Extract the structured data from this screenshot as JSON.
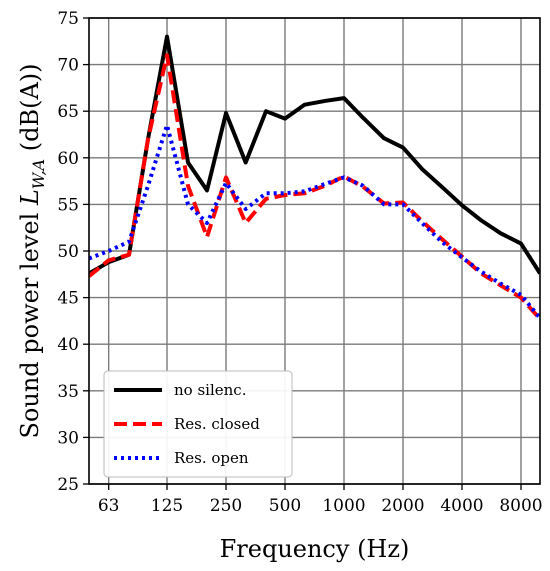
{
  "chart_data": {
    "type": "line",
    "xlabel": "Frequency (Hz)",
    "ylabel": "Sound power level L_{W,A} (dB(A))",
    "ylabel_parts": {
      "prefix": "Sound power level ",
      "symbol": "L",
      "subscript": "W,A",
      "suffix": " (dB(A))"
    },
    "x_scale": "log",
    "xlim": [
      50,
      10000
    ],
    "ylim": [
      25,
      75
    ],
    "grid": true,
    "legend_position": "lower-left",
    "x": [
      50,
      63,
      80,
      100,
      125,
      160,
      200,
      250,
      315,
      400,
      500,
      630,
      800,
      1000,
      1250,
      1600,
      2000,
      2500,
      3150,
      4000,
      5000,
      6300,
      8000,
      10000
    ],
    "x_ticks": [
      63,
      125,
      250,
      500,
      1000,
      2000,
      4000,
      8000
    ],
    "x_tick_labels": [
      "63",
      "125",
      "250",
      "500",
      "1000",
      "2000",
      "4000",
      "8000"
    ],
    "y_ticks": [
      25,
      30,
      35,
      40,
      45,
      50,
      55,
      60,
      65,
      70,
      75
    ],
    "y_tick_labels": [
      "25",
      "30",
      "35",
      "40",
      "45",
      "50",
      "55",
      "60",
      "65",
      "70",
      "75"
    ],
    "series": [
      {
        "name": "no silenc.",
        "color": "#000000",
        "style": "solid",
        "values": [
          47.6,
          48.8,
          49.6,
          62.0,
          73.0,
          59.5,
          56.5,
          64.8,
          59.5,
          65.0,
          64.2,
          65.7,
          66.1,
          66.4,
          64.3,
          62.1,
          61.1,
          58.8,
          56.9,
          54.9,
          53.3,
          51.9,
          50.8,
          47.6
        ]
      },
      {
        "name": "Res. closed",
        "color": "#ff0000",
        "style": "dashed",
        "values": [
          47.3,
          49.0,
          49.6,
          62.0,
          71.0,
          57.0,
          51.5,
          57.9,
          53.0,
          55.6,
          56.0,
          56.2,
          57.0,
          58.0,
          56.9,
          55.1,
          55.2,
          53.2,
          51.3,
          49.4,
          47.6,
          46.3,
          45.0,
          42.7
        ]
      },
      {
        "name": "Res. open",
        "color": "#0000ff",
        "style": "dotted",
        "values": [
          49.2,
          50.0,
          51.0,
          57.0,
          63.5,
          55.0,
          53.0,
          57.3,
          54.5,
          56.2,
          56.2,
          56.4,
          57.2,
          57.9,
          57.0,
          55.0,
          55.0,
          53.0,
          51.0,
          49.3,
          47.8,
          46.5,
          45.3,
          42.8
        ]
      }
    ]
  }
}
